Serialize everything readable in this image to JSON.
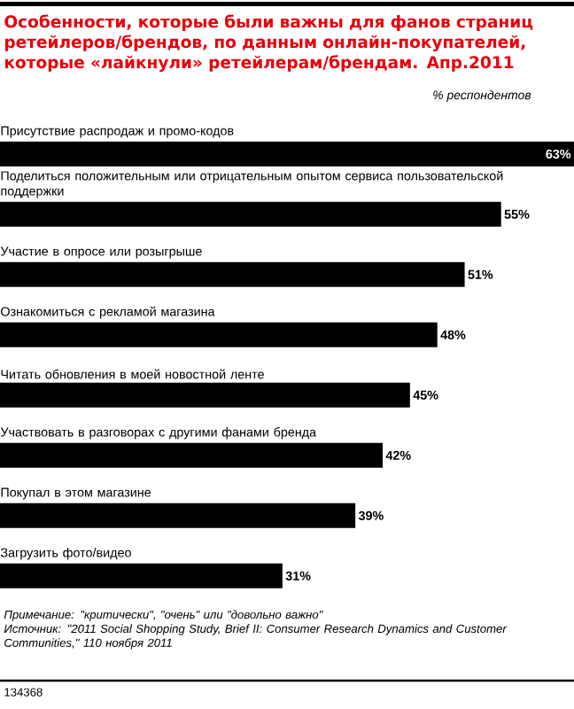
{
  "chart_data": {
    "type": "bar",
    "orientation": "horizontal",
    "title": "Особенности, которые были важны для фанов страниц ретейлеров/брендов, по данным онлайн-покупателей, которые «лайкнули» ретейлерам/брендам. Апр.2011",
    "subtitle": "% респондентов",
    "categories": [
      "Присутствие распродаж и промо-кодов",
      "Поделиться положительным или отрицательным опытом сервиса пользовательской поддержки",
      "Участие в опросе или розыгрыше",
      "Ознакомиться с рекламой магазина",
      "Читать обновления в моей новостной ленте",
      "Участвовать в разговорах с другими фанами бренда",
      "Покупал в этом магазине",
      "Загрузить фото/видео"
    ],
    "values": [
      63,
      55,
      51,
      48,
      45,
      42,
      39,
      31
    ],
    "value_labels": [
      "63%",
      "55%",
      "51%",
      "48%",
      "45%",
      "42%",
      "39%",
      "31%"
    ],
    "color": "#000000",
    "annotations": [
      "Примечание: \"критически\", \"очень\" или \"довольно важно\"",
      "Источник: \"2011 Social Shopping Study, Brief II: Consumer Research Dynamics and Customer Communities,\" 110 ноября 2011",
      "134368"
    ]
  }
}
